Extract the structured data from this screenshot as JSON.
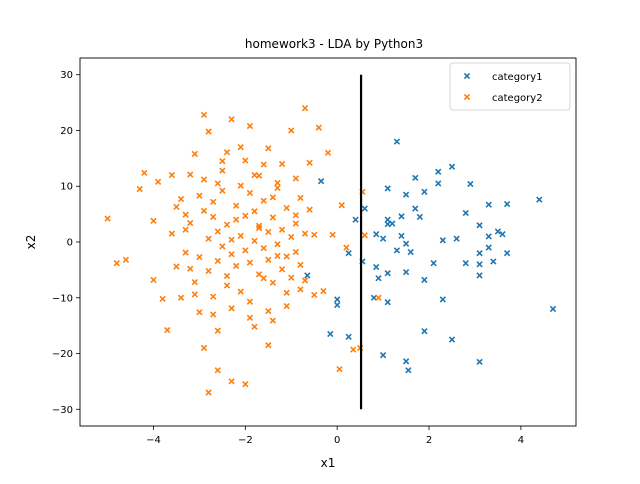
{
  "chart_data": {
    "type": "scatter",
    "title": "homework3 - LDA by Python3",
    "xlabel": "x1",
    "ylabel": "x2",
    "xlim": [
      -5.6,
      5.2
    ],
    "ylim": [
      -33,
      33
    ],
    "xticks": [
      -4,
      -2,
      0,
      2,
      4
    ],
    "yticks": [
      -30,
      -20,
      -10,
      0,
      10,
      20,
      30
    ],
    "xtick_labels": [
      "−4",
      "−2",
      "0",
      "2",
      "4"
    ],
    "ytick_labels": [
      "−30",
      "−20",
      "−10",
      "0",
      "10",
      "20",
      "30"
    ],
    "grid": false,
    "legend": "top-right",
    "marker": "x",
    "decision_line": {
      "x": [
        0.52,
        0.52
      ],
      "y": [
        -30,
        30
      ],
      "color": "#000000"
    },
    "series": [
      {
        "name": "category1",
        "color": "#1f77b4",
        "points": [
          [
            1.3,
            18
          ],
          [
            2.5,
            13.5
          ],
          [
            2.2,
            12.6
          ],
          [
            1.7,
            11.5
          ],
          [
            2.2,
            10.5
          ],
          [
            2.9,
            10.4
          ],
          [
            1.1,
            9.6
          ],
          [
            1.9,
            9
          ],
          [
            1.5,
            8.5
          ],
          [
            3.7,
            6.8
          ],
          [
            3.3,
            6.7
          ],
          [
            4.4,
            7.6
          ],
          [
            1.7,
            6
          ],
          [
            1.4,
            4.6
          ],
          [
            2.8,
            5.2
          ],
          [
            1.8,
            4.5
          ],
          [
            1.1,
            4
          ],
          [
            1.1,
            3.2
          ],
          [
            1.2,
            3.3
          ],
          [
            3.1,
            3
          ],
          [
            3.5,
            1.9
          ],
          [
            2.6,
            0.6
          ],
          [
            3.3,
            1
          ],
          [
            3.6,
            1.4
          ],
          [
            2.3,
            0.3
          ],
          [
            1.4,
            1.1
          ],
          [
            0.85,
            1.4
          ],
          [
            1.0,
            0.6
          ],
          [
            1.5,
            -0.3
          ],
          [
            1.3,
            -1.5
          ],
          [
            3.3,
            -1
          ],
          [
            1.6,
            -1.8
          ],
          [
            0.55,
            -3.5
          ],
          [
            0.85,
            -4.5
          ],
          [
            0.9,
            -6.5
          ],
          [
            2.1,
            -3.8
          ],
          [
            3.1,
            -2
          ],
          [
            3.7,
            -2
          ],
          [
            2.8,
            -3.8
          ],
          [
            3.1,
            -4
          ],
          [
            3.4,
            -3.5
          ],
          [
            1.1,
            -5.6
          ],
          [
            1.5,
            -5.4
          ],
          [
            1.9,
            -6.8
          ],
          [
            3.1,
            -6
          ],
          [
            0.8,
            -10
          ],
          [
            1.1,
            -10.8
          ],
          [
            2.3,
            -10.3
          ],
          [
            1.9,
            -16
          ],
          [
            2.5,
            -17.5
          ],
          [
            4.7,
            -12
          ],
          [
            1,
            -20.3
          ],
          [
            1.5,
            -21.4
          ],
          [
            3.1,
            -21.5
          ],
          [
            1.55,
            -23
          ],
          [
            0.25,
            -2
          ],
          [
            0.0,
            -10.3
          ],
          [
            0.0,
            -11.3
          ],
          [
            -0.35,
            10.9
          ],
          [
            -0.65,
            -6
          ],
          [
            -0.15,
            -16.5
          ],
          [
            0.4,
            4
          ],
          [
            0.6,
            6
          ],
          [
            0.25,
            -17
          ]
        ]
      },
      {
        "name": "category2",
        "color": "#ff7f0e",
        "points": [
          [
            -5.0,
            4.2
          ],
          [
            -4.8,
            -3.8
          ],
          [
            -4.6,
            -3.2
          ],
          [
            -4.3,
            9.5
          ],
          [
            -4.2,
            12.4
          ],
          [
            -4.0,
            3.8
          ],
          [
            -4.0,
            -6.8
          ],
          [
            -3.9,
            10.8
          ],
          [
            -3.8,
            -10.2
          ],
          [
            -3.7,
            -15.8
          ],
          [
            -3.6,
            12
          ],
          [
            -3.5,
            6.3
          ],
          [
            -3.4,
            -10
          ],
          [
            -3.3,
            2.2
          ],
          [
            -3.2,
            -4.8
          ],
          [
            -3.1,
            15.8
          ],
          [
            -3.1,
            -9.4
          ],
          [
            -3.0,
            8.3
          ],
          [
            -2.9,
            22.8
          ],
          [
            -2.9,
            -19
          ],
          [
            -2.8,
            19.8
          ],
          [
            -2.8,
            -27
          ],
          [
            -2.7,
            4.5
          ],
          [
            -2.7,
            -13
          ],
          [
            -2.6,
            10.5
          ],
          [
            -2.6,
            -23
          ],
          [
            -2.5,
            14.5
          ],
          [
            -2.4,
            -7.8
          ],
          [
            -2.3,
            22
          ],
          [
            -2.3,
            -25
          ],
          [
            -2.2,
            4
          ],
          [
            -2.1,
            17
          ],
          [
            -2.0,
            -25.5
          ],
          [
            -1.9,
            20.8
          ],
          [
            -1.9,
            -13.6
          ],
          [
            -1.8,
            12
          ],
          [
            -1.7,
            2.5
          ],
          [
            -1.6,
            -6.5
          ],
          [
            -1.5,
            16.8
          ],
          [
            -1.5,
            -18.5
          ],
          [
            -1.4,
            8
          ],
          [
            -1.3,
            -2.5
          ],
          [
            -1.2,
            14
          ],
          [
            -1.1,
            -11.5
          ],
          [
            -1.0,
            20
          ],
          [
            -0.9,
            4.8
          ],
          [
            -0.8,
            -8.5
          ],
          [
            -0.7,
            24
          ],
          [
            -0.6,
            14.2
          ],
          [
            -0.5,
            1.3
          ],
          [
            -0.5,
            -9.5
          ],
          [
            -0.4,
            20.5
          ],
          [
            -0.3,
            -8.8
          ],
          [
            -0.2,
            16
          ],
          [
            -0.1,
            1.3
          ],
          [
            0.05,
            -22.8
          ],
          [
            0.1,
            6.6
          ],
          [
            0.2,
            -1
          ],
          [
            0.35,
            -19.3
          ],
          [
            0.5,
            -19
          ],
          [
            0.55,
            9
          ],
          [
            0.6,
            1.2
          ],
          [
            0.9,
            -10
          ],
          [
            -3.6,
            1.5
          ],
          [
            -3.3,
            -1.9
          ],
          [
            -3.2,
            3.4
          ],
          [
            -3.0,
            -2.7
          ],
          [
            -2.9,
            5.6
          ],
          [
            -2.8,
            -5.2
          ],
          [
            -2.8,
            0.6
          ],
          [
            -2.7,
            7.2
          ],
          [
            -2.6,
            -3.4
          ],
          [
            -2.6,
            1.9
          ],
          [
            -2.5,
            -0.8
          ],
          [
            -2.5,
            9.2
          ],
          [
            -2.4,
            -6.1
          ],
          [
            -2.4,
            3.1
          ],
          [
            -2.3,
            0.4
          ],
          [
            -2.3,
            -2.2
          ],
          [
            -2.2,
            6.5
          ],
          [
            -2.2,
            -4.3
          ],
          [
            -2.1,
            1.1
          ],
          [
            -2.1,
            -8.9
          ],
          [
            -2.0,
            4.7
          ],
          [
            -2.0,
            -1.5
          ],
          [
            -1.9,
            8.8
          ],
          [
            -1.9,
            -3.7
          ],
          [
            -1.8,
            0.2
          ],
          [
            -1.8,
            5.5
          ],
          [
            -1.7,
            -5.8
          ],
          [
            -1.7,
            2.9
          ],
          [
            -1.6,
            -1.1
          ],
          [
            -1.6,
            7.4
          ],
          [
            -1.5,
            -3.2
          ],
          [
            -1.5,
            1.8
          ],
          [
            -1.4,
            -7.3
          ],
          [
            -1.4,
            4.4
          ],
          [
            -1.3,
            -0.4
          ],
          [
            -1.3,
            9.7
          ],
          [
            -1.2,
            -4.9
          ],
          [
            -1.2,
            2.2
          ],
          [
            -1.1,
            6.1
          ],
          [
            -1.1,
            -2.6
          ],
          [
            -1.0,
            0.9
          ],
          [
            -1.0,
            -6.4
          ],
          [
            -0.9,
            3.3
          ],
          [
            -0.9,
            -1.8
          ],
          [
            -0.8,
            7.9
          ],
          [
            -0.8,
            -4.1
          ],
          [
            -0.7,
            1.5
          ],
          [
            -3.4,
            7.7
          ],
          [
            -3.1,
            -7.2
          ],
          [
            -2.9,
            11.2
          ],
          [
            -2.7,
            -9.8
          ],
          [
            -2.5,
            12.8
          ],
          [
            -2.3,
            -11.9
          ],
          [
            -2.1,
            10.1
          ],
          [
            -1.9,
            -10.7
          ],
          [
            -1.7,
            11.9
          ],
          [
            -1.5,
            -12.4
          ],
          [
            -1.3,
            10.6
          ],
          [
            -1.1,
            -9.1
          ],
          [
            -0.9,
            11.4
          ],
          [
            -0.7,
            -6.9
          ],
          [
            -0.6,
            5.8
          ],
          [
            -3.5,
            -4.4
          ],
          [
            -3.3,
            4.9
          ],
          [
            -2.0,
            14.6
          ],
          [
            -1.8,
            -15.2
          ],
          [
            -2.4,
            16.1
          ],
          [
            -2.6,
            -15.9
          ],
          [
            -1.6,
            13.9
          ],
          [
            -1.4,
            -14.1
          ],
          [
            -3.0,
            -12.6
          ],
          [
            -3.2,
            12.1
          ]
        ]
      }
    ]
  }
}
